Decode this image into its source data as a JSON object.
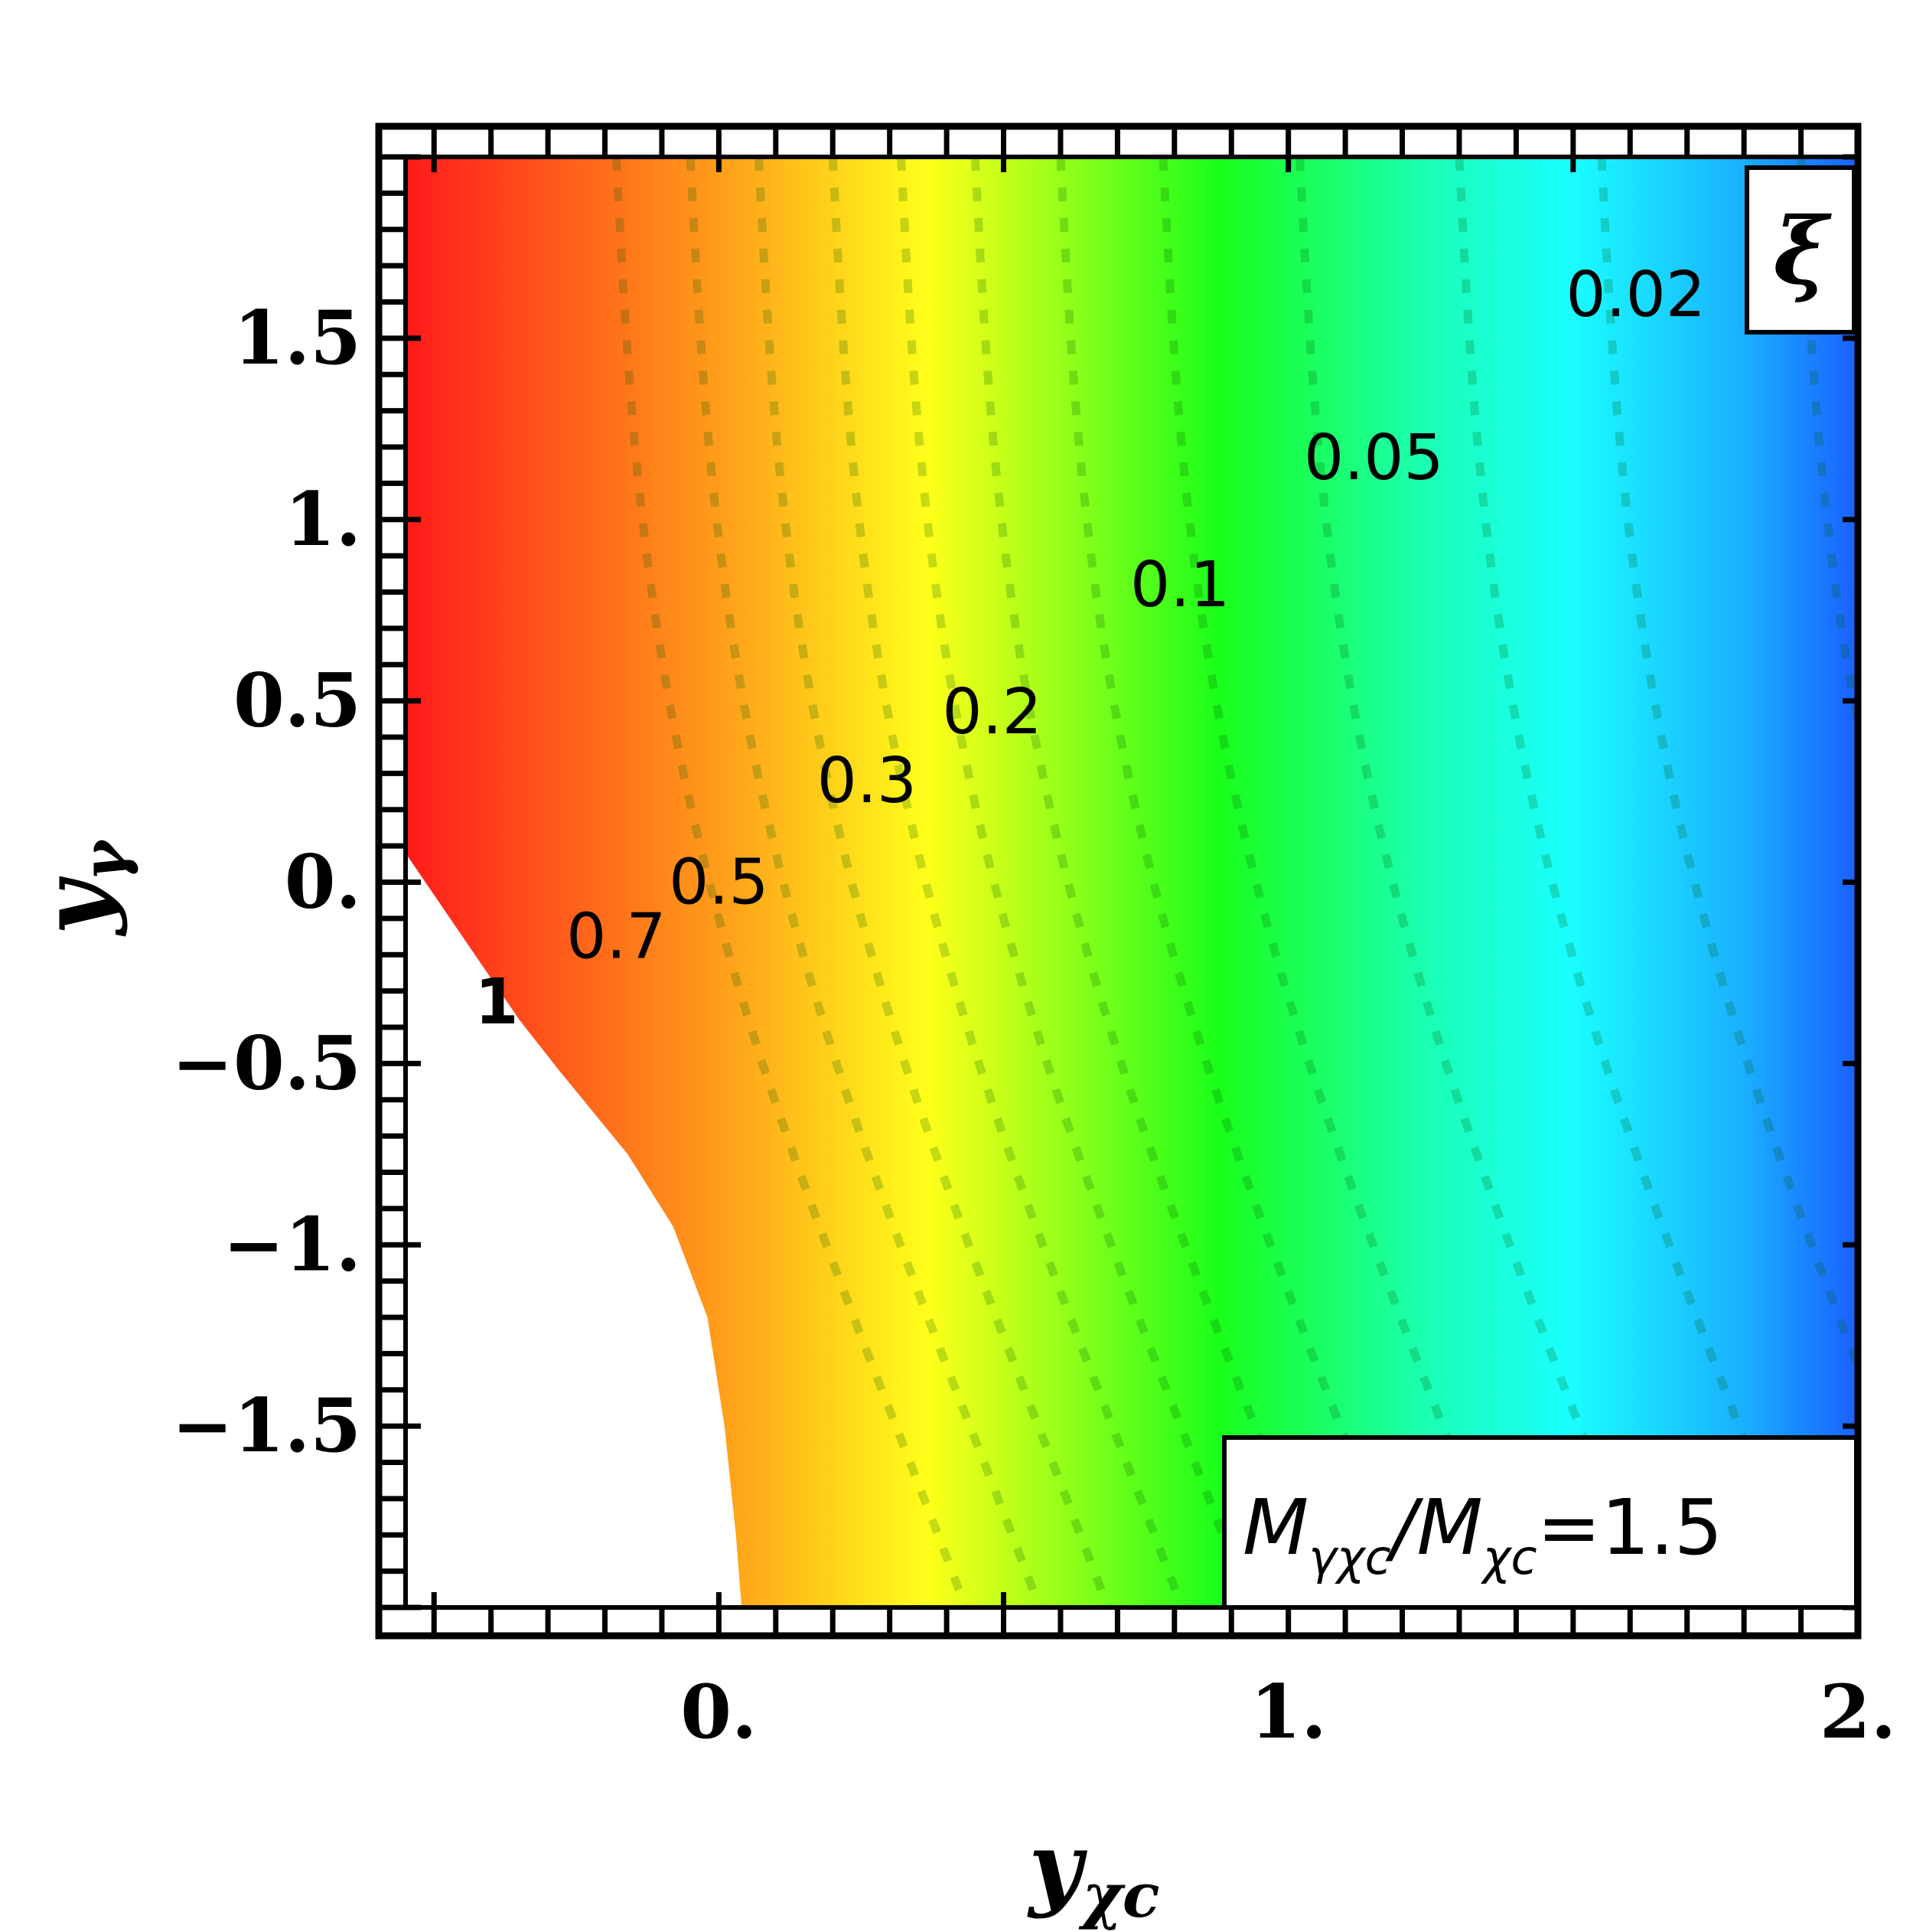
{
  "chart_data": {
    "type": "heatmap",
    "title": "",
    "xlabel": {
      "main": "y",
      "sub": "χc"
    },
    "ylabel": {
      "main": "y",
      "sub": "γ"
    },
    "xlim": [
      -0.55,
      2.0
    ],
    "ylim": [
      -2.0,
      2.0
    ],
    "x_ticks": [
      {
        "value": 0,
        "label": "0."
      },
      {
        "value": 1,
        "label": "1."
      },
      {
        "value": 2,
        "label": "2."
      }
    ],
    "y_ticks": [
      {
        "value": 1.5,
        "label": "1.5"
      },
      {
        "value": 1,
        "label": "1."
      },
      {
        "value": 0.5,
        "label": "0.5"
      },
      {
        "value": 0,
        "label": "0."
      },
      {
        "value": -0.5,
        "label": "−0.5"
      },
      {
        "value": -1,
        "label": "−1."
      },
      {
        "value": -1.5,
        "label": "−1.5"
      }
    ],
    "colormap": "rainbow (red = high, blue = low)",
    "grid": false,
    "legend": "none",
    "panel_label": "ξ",
    "annotation": {
      "lhs": "M",
      "lhs_sub": "γχc",
      "slash": "/",
      "rhs": "M",
      "rhs_sub": "χc",
      "eq": "=1.5"
    },
    "contours": [
      {
        "level": "1",
        "label_x": -0.39,
        "label_y": -0.33,
        "bold": true
      },
      {
        "level": "0.7",
        "label_x": -0.18,
        "label_y": -0.15
      },
      {
        "level": "0.5",
        "label_x": 0.0,
        "label_y": 0.0
      },
      {
        "level": "0.3",
        "label_x": 0.26,
        "label_y": 0.28
      },
      {
        "level": "0.2",
        "label_x": 0.48,
        "label_y": 0.47
      },
      {
        "level": "0.1",
        "label_x": 0.81,
        "label_y": 0.82
      },
      {
        "level": "0.05",
        "label_x": 1.15,
        "label_y": 1.17
      },
      {
        "level": "0.02",
        "label_x": 1.61,
        "label_y": 1.62
      }
    ]
  }
}
